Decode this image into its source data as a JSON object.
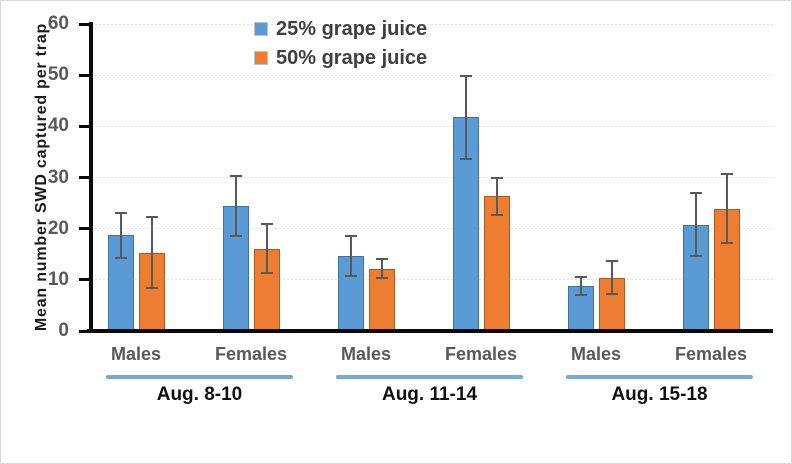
{
  "figure": {
    "background": "#ffffff",
    "border_color": "#d8d8d8"
  },
  "chart_data": {
    "type": "bar",
    "title": "",
    "xlabel": "",
    "ylabel": "Mean number SWD captured per trap",
    "ylim": [
      0,
      60
    ],
    "yticks": [
      0,
      10,
      20,
      30,
      40,
      50,
      60
    ],
    "grid": "horizontal dotted lines at each ytick above zero",
    "legend_position": "top, inside plot, left-of-center, stacked vertically",
    "error_bars": "symmetric, with end caps",
    "categories": [
      "Males",
      "Females",
      "Males",
      "Females",
      "Males",
      "Females"
    ],
    "group_labels": [
      "Aug. 8-10",
      "Aug. 11-14",
      "Aug. 15-18"
    ],
    "series": [
      {
        "name": "25% grape juice",
        "color": "#5B9BD5",
        "border_color": "#41719C",
        "values": [
          18.7,
          24.4,
          14.6,
          41.8,
          8.8,
          20.8
        ],
        "errors": [
          4.4,
          5.9,
          3.9,
          8.1,
          1.8,
          6.2
        ]
      },
      {
        "name": "50% grape juice",
        "color": "#ED7D31",
        "border_color": "#AE5A21",
        "values": [
          15.3,
          16.1,
          12.2,
          26.3,
          10.4,
          23.9
        ],
        "errors": [
          6.9,
          4.8,
          1.9,
          3.7,
          3.2,
          6.7
        ]
      }
    ],
    "error_bar_color": "#595959",
    "group_underline_color": "#74A9D8",
    "axis_color": "#0a0a0a",
    "tick_label_color": "#595959",
    "category_label_color": "#595959",
    "group_label_color": "#111111"
  }
}
